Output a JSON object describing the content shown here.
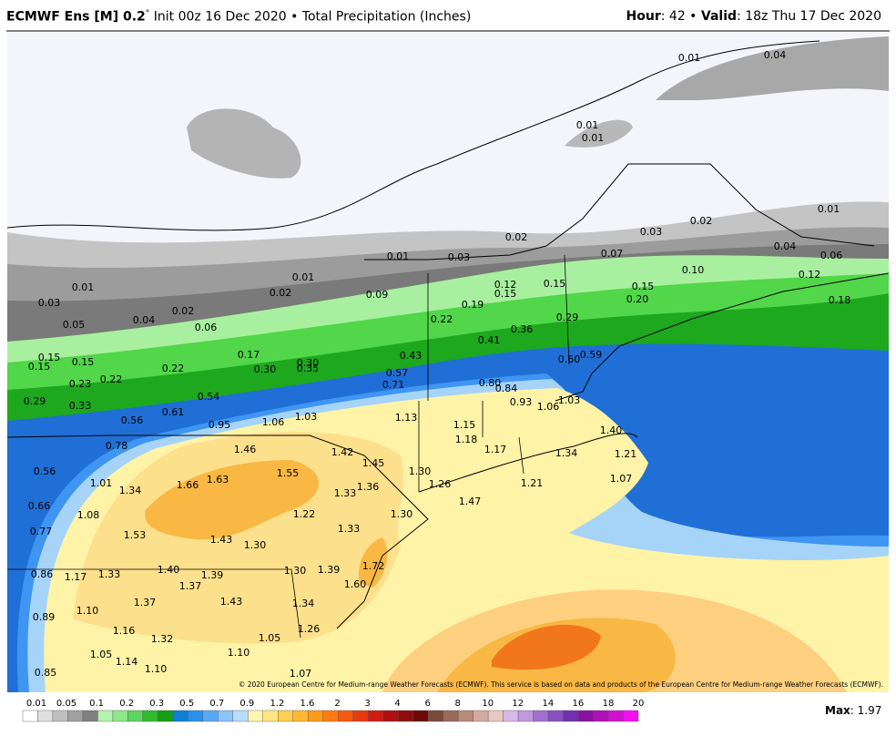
{
  "header": {
    "title_bold": "ECMWF Ens [M] 0.2",
    "degree": "°",
    "title_rest": "Init 00z 16 Dec 2020 • Total Precipitation (Inches)",
    "hour_label": "Hour",
    "hour_value": ": 42 • ",
    "valid_label": "Valid",
    "valid_value": ": 18z Thu 17 Dec 2020"
  },
  "map_labels": [
    "0.01",
    "0.04",
    "0.01",
    "0.01",
    "0.02",
    "0.03",
    "0.01",
    "0.02",
    "0.07",
    "0.01",
    "0.03",
    "0.04",
    "0.06",
    "0.10",
    "0.12",
    "0.01",
    "0.01",
    "0.02",
    "0.12",
    "0.15",
    "0.15",
    "0.15",
    "0.20",
    "0.18",
    "0.03",
    "0.09",
    "0.19",
    "0.04",
    "0.02",
    "0.06",
    "0.05",
    "0.22",
    "0.36",
    "0.29",
    "0.41",
    "0.15",
    "0.15",
    "0.15",
    "0.17",
    "0.22",
    "0.30",
    "0.30",
    "0.35",
    "0.43",
    "0.59",
    "0.60",
    "0.23",
    "0.22",
    "0.57",
    "0.71",
    "0.80",
    "0.84",
    "0.54",
    "0.29",
    "0.33",
    "0.93",
    "1.06",
    "1.03",
    "0.61",
    "0.56",
    "0.95",
    "1.06",
    "1.03",
    "1.13",
    "1.15",
    "1.18",
    "1.40",
    "1.17",
    "0.78",
    "1.46",
    "1.42",
    "1.34",
    "1.21",
    "1.45",
    "0.56",
    "1.55",
    "1.30",
    "1.63",
    "1.66",
    "1.01",
    "1.26",
    "1.21",
    "1.07",
    "1.34",
    "1.36",
    "1.33",
    "1.47",
    "0.66",
    "1.08",
    "1.22",
    "1.30",
    "1.53",
    "1.33",
    "0.77",
    "1.43",
    "1.30",
    "1.40",
    "1.39",
    "1.30",
    "1.39",
    "1.72",
    "0.86",
    "1.17",
    "1.33",
    "1.37",
    "1.60",
    "1.34",
    "1.43",
    "1.37",
    "1.10",
    "0.89",
    "1.26",
    "1.16",
    "1.32",
    "1.05",
    "1.10",
    "1.05",
    "1.14",
    "1.10",
    "1.07",
    "0.85"
  ],
  "copyright": "© 2020 European Centre for Medium-range Weather Forecasts (ECMWF). This service is based on data and products of the European Centre for Medium-range Weather Forecasts (ECMWF).",
  "colorbar": {
    "labels": [
      0.01,
      0.05,
      0.1,
      0.2,
      0.3,
      0.5,
      0.7,
      0.9,
      1.2,
      1.6,
      2,
      3,
      4,
      6,
      8,
      10,
      12,
      14,
      16,
      18,
      20
    ]
  },
  "max": {
    "label": "Max",
    "value": ": 1.97"
  }
}
